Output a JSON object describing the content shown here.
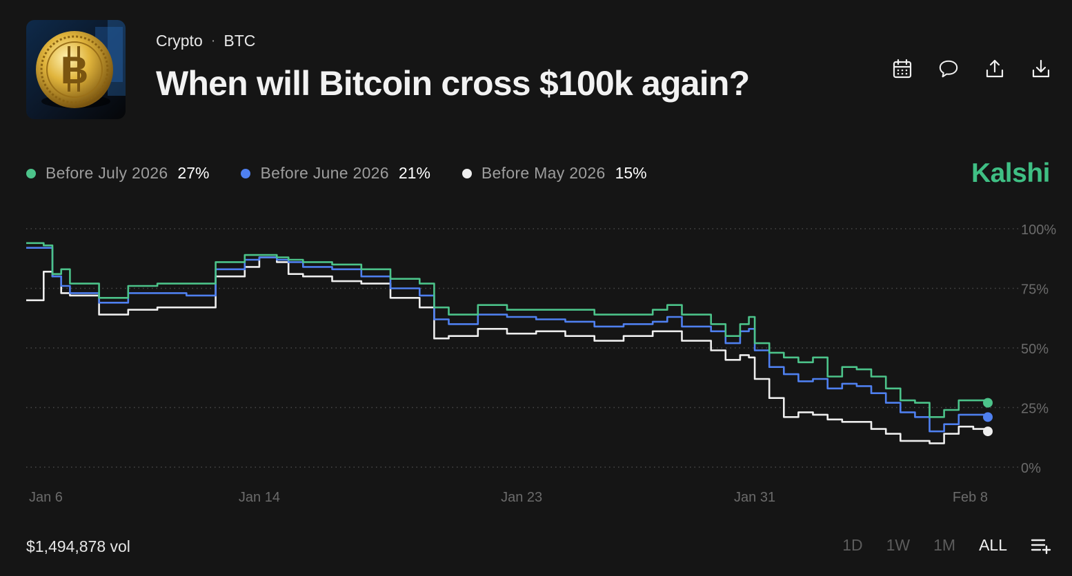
{
  "header": {
    "category": "Crypto",
    "separator": "·",
    "ticker": "BTC",
    "title": "When will Bitcoin cross $100k again?",
    "thumbnail_icon": "bitcoin-coin-icon"
  },
  "actions": [
    {
      "icon": "calendar-icon"
    },
    {
      "icon": "comment-icon"
    },
    {
      "icon": "share-upload-icon"
    },
    {
      "icon": "download-icon"
    }
  ],
  "brand": "Kalshi",
  "legend": [
    {
      "label": "Before July 2026",
      "value": "27%",
      "color": "#4cc38a"
    },
    {
      "label": "Before June 2026",
      "value": "21%",
      "color": "#4f80f0"
    },
    {
      "label": "Before May 2026",
      "value": "15%",
      "color": "#eeeeee"
    }
  ],
  "footer": {
    "volume": "$1,494,878 vol",
    "ranges": [
      "1D",
      "1W",
      "1M",
      "ALL"
    ],
    "active_range": "ALL",
    "add_icon": "add-to-list-icon"
  },
  "chart_data": {
    "type": "line",
    "title": "",
    "xlabel": "",
    "ylabel": "",
    "ylim": [
      0,
      100
    ],
    "yticks": [
      "100%",
      "75%",
      "50%",
      "25%",
      "0%"
    ],
    "ytick_values": [
      100,
      75,
      50,
      25,
      0
    ],
    "xticks": [
      "Jan 6",
      "Jan 14",
      "Jan 23",
      "Jan 31",
      "Feb 8"
    ],
    "xtick_values": [
      0,
      8,
      17,
      25,
      33
    ],
    "xlim": [
      0,
      33
    ],
    "grid": true,
    "x": [
      0,
      0.6,
      0.9,
      1.2,
      1.5,
      2.5,
      3.5,
      4.5,
      5.5,
      6.5,
      7.5,
      8.0,
      8.6,
      9.0,
      9.5,
      10.5,
      11.5,
      12.5,
      13.5,
      14.0,
      14.5,
      15.5,
      16.5,
      17.5,
      18.5,
      19.5,
      20.5,
      21.5,
      22.0,
      22.5,
      23.5,
      24.0,
      24.5,
      24.8,
      25.0,
      25.5,
      26.0,
      26.5,
      27.0,
      27.5,
      28.0,
      28.5,
      29.0,
      29.5,
      30.0,
      30.5,
      31.0,
      31.5,
      32.0,
      32.5,
      33.0
    ],
    "series": [
      {
        "name": "Before July 2026",
        "color": "#4cc38a",
        "current": "27%",
        "values": [
          94,
          93,
          81,
          83,
          77,
          71,
          76,
          77,
          77,
          86,
          89,
          89,
          88,
          87,
          86,
          85,
          83,
          79,
          77,
          67,
          64,
          68,
          66,
          66,
          66,
          64,
          64,
          66,
          68,
          64,
          60,
          55,
          60,
          63,
          52,
          48,
          46,
          44,
          46,
          38,
          42,
          41,
          38,
          33,
          28,
          27,
          21,
          24,
          28,
          28,
          27
        ]
      },
      {
        "name": "Before June 2026",
        "color": "#4f80f0",
        "current": "21%",
        "values": [
          92,
          92,
          80,
          76,
          73,
          69,
          73,
          73,
          72,
          83,
          87,
          88,
          87,
          86,
          84,
          83,
          80,
          75,
          72,
          62,
          60,
          64,
          63,
          62,
          61,
          59,
          60,
          61,
          63,
          59,
          57,
          52,
          57,
          58,
          49,
          42,
          39,
          36,
          37,
          33,
          35,
          34,
          31,
          27,
          23,
          21,
          15,
          18,
          22,
          22,
          21
        ]
      },
      {
        "name": "Before May 2026",
        "color": "#eeeeee",
        "current": "15%",
        "values": [
          70,
          82,
          80,
          73,
          72,
          64,
          66,
          67,
          67,
          80,
          84,
          88,
          86,
          81,
          80,
          78,
          77,
          71,
          67,
          54,
          55,
          58,
          56,
          57,
          55,
          53,
          55,
          57,
          57,
          53,
          49,
          45,
          47,
          46,
          37,
          29,
          21,
          23,
          22,
          20,
          19,
          19,
          16,
          14,
          11,
          11,
          10,
          14,
          17,
          16,
          15
        ]
      }
    ]
  }
}
